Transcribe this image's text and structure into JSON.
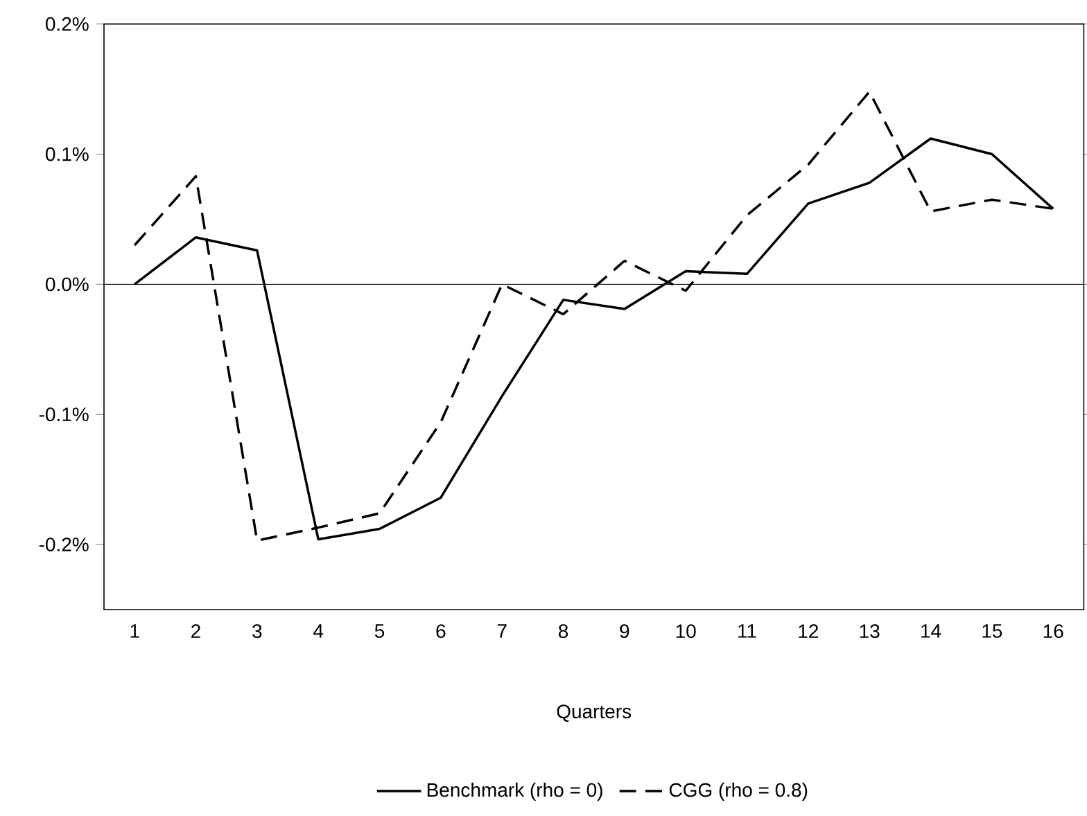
{
  "chart_data": {
    "type": "line",
    "xlabel": "Quarters",
    "categories": [
      "1",
      "2",
      "3",
      "4",
      "5",
      "6",
      "7",
      "8",
      "9",
      "10",
      "11",
      "12",
      "13",
      "14",
      "15",
      "16"
    ],
    "series": [
      {
        "name": "Benchmark (rho = 0)",
        "color": "#000000",
        "line_style": "solid",
        "values": [
          0.0,
          0.036,
          0.026,
          -0.196,
          -0.188,
          -0.164,
          -0.086,
          -0.012,
          -0.019,
          0.01,
          0.008,
          0.062,
          0.078,
          0.112,
          0.1,
          0.058
        ]
      },
      {
        "name": "CGG (rho = 0.8)",
        "color": "#000000",
        "line_style": "dashed",
        "values": [
          0.03,
          0.083,
          -0.197,
          -0.187,
          -0.176,
          -0.106,
          0.0,
          -0.023,
          0.018,
          -0.005,
          0.053,
          0.092,
          0.148,
          0.056,
          0.065,
          0.058
        ]
      }
    ],
    "ylim": [
      -0.25,
      0.2
    ],
    "yticks": [
      {
        "value": -0.2,
        "label": "-0.2%"
      },
      {
        "value": -0.1,
        "label": "-0.1%"
      },
      {
        "value": 0.0,
        "label": "0.0%"
      },
      {
        "value": 0.1,
        "label": "0.1%"
      },
      {
        "value": 0.2,
        "label": "0.2%"
      }
    ],
    "ref_lines": [
      {
        "axis": "y",
        "value": 0
      }
    ],
    "grid": false,
    "legend": "bottom",
    "marker": "none"
  }
}
